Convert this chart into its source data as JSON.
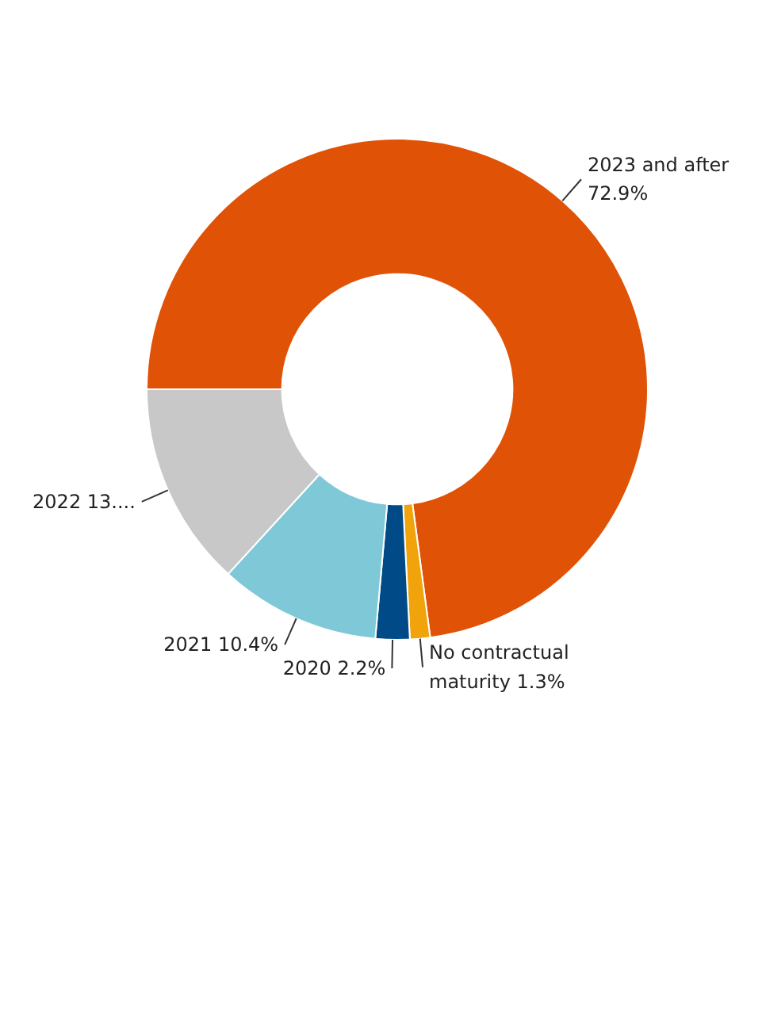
{
  "chart_data": {
    "type": "donut",
    "categories": [
      "2023 and after",
      "No contractual maturity",
      "2020",
      "2021",
      "2022"
    ],
    "values": [
      72.9,
      1.3,
      2.2,
      10.4,
      13.2
    ],
    "value_labels": [
      "72.9%",
      "1.3%",
      "2.2%",
      "10.4%",
      "13...."
    ],
    "colors": [
      "#e05206",
      "#f0a30a",
      "#004b87",
      "#7ec8d8",
      "#c8c8c8"
    ],
    "legend": false
  }
}
